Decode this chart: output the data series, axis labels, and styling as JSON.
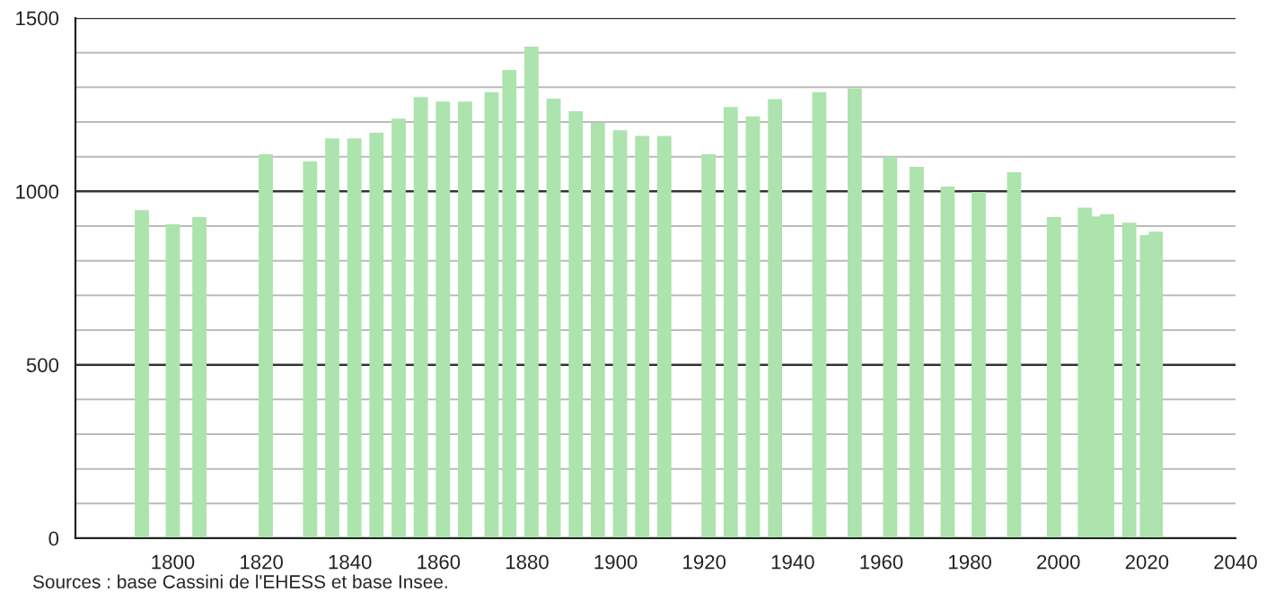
{
  "chart_data": {
    "type": "bar",
    "x": [
      1793,
      1800,
      1806,
      1821,
      1831,
      1836,
      1841,
      1846,
      1851,
      1856,
      1861,
      1866,
      1872,
      1876,
      1881,
      1886,
      1891,
      1896,
      1901,
      1906,
      1911,
      1921,
      1926,
      1931,
      1936,
      1946,
      1954,
      1962,
      1968,
      1975,
      1982,
      1990,
      1999,
      2006,
      2008,
      2011,
      2016,
      2020,
      2022
    ],
    "values": [
      946,
      905,
      926,
      1107,
      1086,
      1153,
      1153,
      1169,
      1210,
      1272,
      1259,
      1259,
      1286,
      1350,
      1417,
      1267,
      1231,
      1198,
      1176,
      1160,
      1160,
      1107,
      1243,
      1216,
      1266,
      1286,
      1297,
      1100,
      1071,
      1014,
      998,
      1055,
      926,
      953,
      928,
      934,
      910,
      874,
      884
    ],
    "color": "#ade3ad",
    "xlim": [
      1778,
      2040
    ],
    "xticks": [
      1800,
      1820,
      1840,
      1860,
      1880,
      1900,
      1920,
      1940,
      1960,
      1980,
      2000,
      2020,
      2040
    ],
    "ylim": [
      0,
      1500
    ],
    "yticks": [
      0,
      {
        "value": 100,
        "label": null
      },
      {
        "value": 200,
        "label": null
      },
      {
        "value": 300,
        "label": null
      },
      {
        "value": 400,
        "label": null
      },
      500,
      {
        "value": 600,
        "label": null
      },
      {
        "value": 700,
        "label": null
      },
      {
        "value": 800,
        "label": null
      },
      {
        "value": 900,
        "label": null
      },
      1000,
      {
        "value": 1100,
        "label": null
      },
      {
        "value": 1200,
        "label": null
      },
      {
        "value": 1300,
        "label": null
      },
      {
        "value": 1400,
        "label": null
      },
      1500
    ],
    "grid": "y",
    "annotations": [
      "Sources : base Cassini de l'EHESS et base Insee."
    ]
  }
}
